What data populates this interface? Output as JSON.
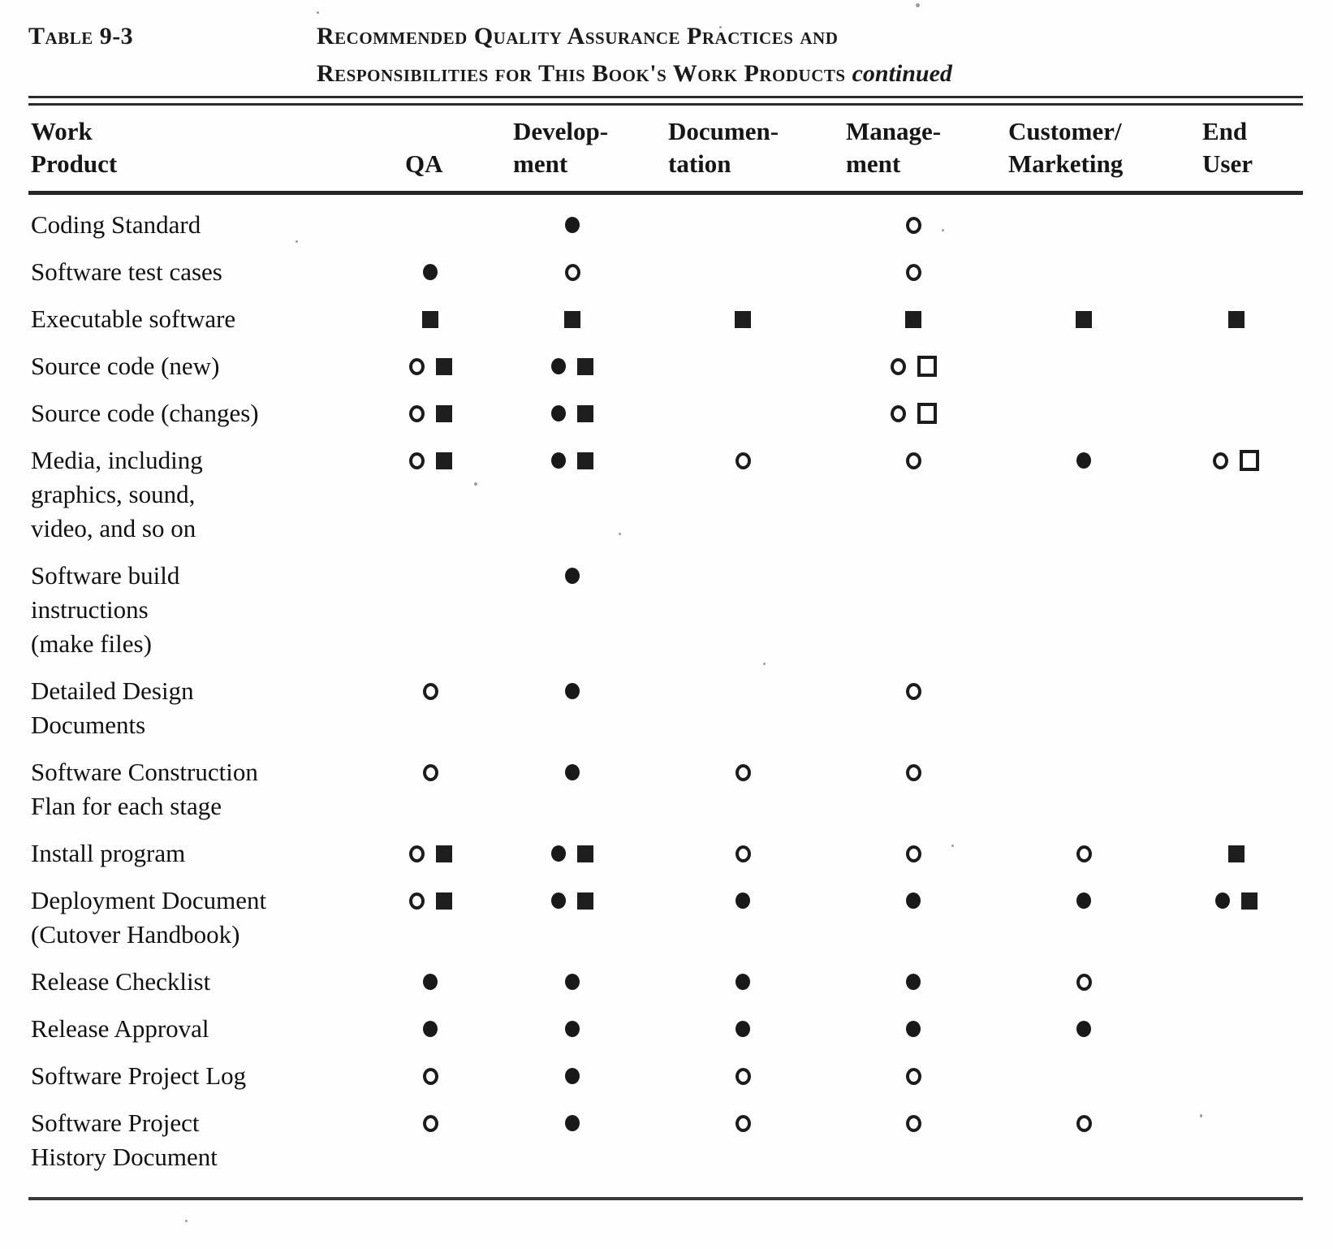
{
  "page": {
    "table_label": "Table 9-3",
    "title_line1": "Recommended Quality Assurance Practices and",
    "title_line2": "Responsibilities for This Book's Work Products",
    "title_continued": "continued"
  },
  "symbol_legend": {
    "filled-circle": "●",
    "open-circle": "○",
    "filled-square": "■",
    "open-square": "□"
  },
  "table": {
    "headers": [
      {
        "key": "product",
        "lines": [
          "Work",
          "Product"
        ]
      },
      {
        "key": "qa",
        "lines": [
          "QA"
        ]
      },
      {
        "key": "development",
        "lines": [
          "Develop-",
          "ment"
        ]
      },
      {
        "key": "documentation",
        "lines": [
          "Documen-",
          "tation"
        ]
      },
      {
        "key": "management",
        "lines": [
          "Manage-",
          "ment"
        ]
      },
      {
        "key": "customer_marketing",
        "lines": [
          "Customer/",
          "Marketing"
        ]
      },
      {
        "key": "end_user",
        "lines": [
          "End",
          "User"
        ]
      }
    ],
    "rows": [
      {
        "product_lines": [
          "Coding Standard"
        ],
        "cells": {
          "qa": [],
          "development": [
            "filled-circle"
          ],
          "documentation": [],
          "management": [
            "open-circle"
          ],
          "customer_marketing": [],
          "end_user": []
        }
      },
      {
        "product_lines": [
          "Software test cases"
        ],
        "cells": {
          "qa": [
            "filled-circle"
          ],
          "development": [
            "open-circle"
          ],
          "documentation": [],
          "management": [
            "open-circle"
          ],
          "customer_marketing": [],
          "end_user": []
        }
      },
      {
        "product_lines": [
          "Executable software"
        ],
        "cells": {
          "qa": [
            "filled-square"
          ],
          "development": [
            "filled-square"
          ],
          "documentation": [
            "filled-square"
          ],
          "management": [
            "filled-square"
          ],
          "customer_marketing": [
            "filled-square"
          ],
          "end_user": [
            "filled-square"
          ]
        }
      },
      {
        "product_lines": [
          "Source code (new)"
        ],
        "cells": {
          "qa": [
            "open-circle",
            "filled-square"
          ],
          "development": [
            "filled-circle",
            "filled-square"
          ],
          "documentation": [],
          "management": [
            "open-circle",
            "open-square"
          ],
          "customer_marketing": [],
          "end_user": []
        }
      },
      {
        "product_lines": [
          "Source code (changes)"
        ],
        "cells": {
          "qa": [
            "open-circle",
            "filled-square"
          ],
          "development": [
            "filled-circle",
            "filled-square"
          ],
          "documentation": [],
          "management": [
            "open-circle",
            "open-square"
          ],
          "customer_marketing": [],
          "end_user": []
        }
      },
      {
        "product_lines": [
          "Media, including",
          "graphics, sound,",
          "video, and so on"
        ],
        "cells": {
          "qa": [
            "open-circle",
            "filled-square"
          ],
          "development": [
            "filled-circle",
            "filled-square"
          ],
          "documentation": [
            "open-circle"
          ],
          "management": [
            "open-circle"
          ],
          "customer_marketing": [
            "filled-circle"
          ],
          "end_user": [
            "open-circle",
            "open-square"
          ]
        }
      },
      {
        "product_lines": [
          "Software build",
          "instructions",
          "(make files)"
        ],
        "cells": {
          "qa": [],
          "development": [
            "filled-circle"
          ],
          "documentation": [],
          "management": [],
          "customer_marketing": [],
          "end_user": []
        }
      },
      {
        "product_lines": [
          "Detailed Design",
          "Documents"
        ],
        "cells": {
          "qa": [
            "open-circle"
          ],
          "development": [
            "filled-circle"
          ],
          "documentation": [],
          "management": [
            "open-circle"
          ],
          "customer_marketing": [],
          "end_user": []
        }
      },
      {
        "product_lines": [
          "Software Construction",
          "Flan for each stage"
        ],
        "cells": {
          "qa": [
            "open-circle"
          ],
          "development": [
            "filled-circle"
          ],
          "documentation": [
            "open-circle"
          ],
          "management": [
            "open-circle"
          ],
          "customer_marketing": [],
          "end_user": []
        }
      },
      {
        "product_lines": [
          "Install program"
        ],
        "cells": {
          "qa": [
            "open-circle",
            "filled-square"
          ],
          "development": [
            "filled-circle",
            "filled-square"
          ],
          "documentation": [
            "open-circle"
          ],
          "management": [
            "open-circle"
          ],
          "customer_marketing": [
            "open-circle"
          ],
          "end_user": [
            "filled-square"
          ]
        }
      },
      {
        "product_lines": [
          "Deployment Document",
          "(Cutover Handbook)"
        ],
        "cells": {
          "qa": [
            "open-circle",
            "filled-square"
          ],
          "development": [
            "filled-circle",
            "filled-square"
          ],
          "documentation": [
            "filled-circle"
          ],
          "management": [
            "filled-circle"
          ],
          "customer_marketing": [
            "filled-circle"
          ],
          "end_user": [
            "filled-circle",
            "filled-square"
          ]
        }
      },
      {
        "product_lines": [
          "Release Checklist"
        ],
        "cells": {
          "qa": [
            "filled-circle"
          ],
          "development": [
            "filled-circle"
          ],
          "documentation": [
            "filled-circle"
          ],
          "management": [
            "filled-circle"
          ],
          "customer_marketing": [
            "open-circle"
          ],
          "end_user": []
        }
      },
      {
        "product_lines": [
          "Release Approval"
        ],
        "cells": {
          "qa": [
            "filled-circle"
          ],
          "development": [
            "filled-circle"
          ],
          "documentation": [
            "filled-circle"
          ],
          "management": [
            "filled-circle"
          ],
          "customer_marketing": [
            "filled-circle"
          ],
          "end_user": []
        }
      },
      {
        "product_lines": [
          "Software Project Log"
        ],
        "cells": {
          "qa": [
            "open-circle"
          ],
          "development": [
            "filled-circle"
          ],
          "documentation": [
            "open-circle"
          ],
          "management": [
            "open-circle"
          ],
          "customer_marketing": [],
          "end_user": []
        }
      },
      {
        "product_lines": [
          "Software Project",
          "History Document"
        ],
        "cells": {
          "qa": [
            "open-circle"
          ],
          "development": [
            "filled-circle"
          ],
          "documentation": [
            "open-circle"
          ],
          "management": [
            "open-circle"
          ],
          "customer_marketing": [
            "open-circle"
          ],
          "end_user": []
        }
      }
    ]
  }
}
